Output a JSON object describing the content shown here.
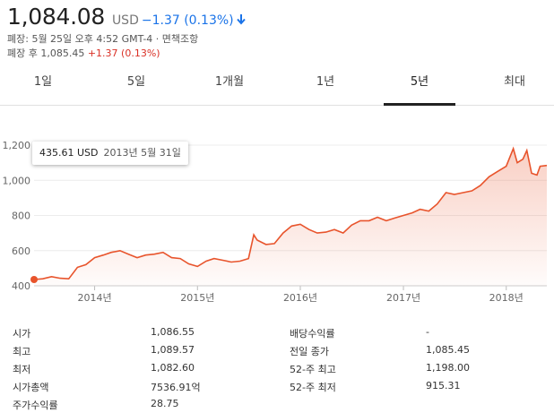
{
  "quote": {
    "price": "1,084.08",
    "currency": "USD",
    "change": "−1.37 (0.13%)",
    "close_time": "폐장: 5월 25일 오후 4:52 GMT-4 · ",
    "disclaimer": "면책조항",
    "after_hours_label": "폐장 후 1,085.45 ",
    "after_hours_change": "+1.37 (0.13%)",
    "colors": {
      "down": "#1a73e8",
      "up": "#d93025",
      "line": "#e8542c"
    }
  },
  "tabs": [
    {
      "label": "1일"
    },
    {
      "label": "5일"
    },
    {
      "label": "1개월"
    },
    {
      "label": "1년"
    },
    {
      "label": "5년",
      "active": true
    },
    {
      "label": "최대"
    }
  ],
  "tooltip": {
    "value": "435.61 USD",
    "date": "2013년 5월 31일"
  },
  "chart_data": {
    "type": "area",
    "title": "",
    "xlabel": "",
    "ylabel": "",
    "x_ticks": [
      "2014년",
      "2015년",
      "2016년",
      "2017년",
      "2018년"
    ],
    "y_ticks": [
      "400",
      "600",
      "800",
      "1,000",
      "1,200"
    ],
    "ylim": [
      400,
      1200
    ],
    "xlim": [
      "2013-05-31",
      "2018-05-25"
    ],
    "grid": true,
    "x": [
      "2013-05-31",
      "2013-07-01",
      "2013-08-01",
      "2013-09-01",
      "2013-10-01",
      "2013-11-01",
      "2013-12-01",
      "2014-01-01",
      "2014-02-01",
      "2014-03-01",
      "2014-04-01",
      "2014-05-01",
      "2014-06-01",
      "2014-07-01",
      "2014-08-01",
      "2014-09-01",
      "2014-10-01",
      "2014-11-01",
      "2014-12-01",
      "2015-01-01",
      "2015-02-01",
      "2015-03-01",
      "2015-04-01",
      "2015-05-01",
      "2015-06-01",
      "2015-07-01",
      "2015-07-20",
      "2015-08-01",
      "2015-09-01",
      "2015-10-01",
      "2015-11-01",
      "2015-12-01",
      "2016-01-01",
      "2016-02-01",
      "2016-03-01",
      "2016-04-01",
      "2016-05-01",
      "2016-06-01",
      "2016-07-01",
      "2016-08-01",
      "2016-09-01",
      "2016-10-01",
      "2016-11-01",
      "2016-12-01",
      "2017-01-01",
      "2017-02-01",
      "2017-03-01",
      "2017-04-01",
      "2017-05-01",
      "2017-06-01",
      "2017-07-01",
      "2017-08-01",
      "2017-09-01",
      "2017-10-01",
      "2017-11-01",
      "2017-12-01",
      "2018-01-01",
      "2018-01-26",
      "2018-02-09",
      "2018-03-01",
      "2018-03-15",
      "2018-04-01",
      "2018-04-20",
      "2018-05-01",
      "2018-05-25"
    ],
    "series": [
      {
        "values": [
          435.61,
          440,
          452,
          443,
          440,
          505,
          520,
          560,
          575,
          590,
          600,
          580,
          560,
          575,
          580,
          590,
          560,
          555,
          525,
          510,
          540,
          555,
          545,
          535,
          540,
          555,
          690,
          660,
          635,
          640,
          700,
          740,
          750,
          720,
          700,
          705,
          720,
          700,
          745,
          770,
          770,
          790,
          770,
          785,
          800,
          815,
          835,
          825,
          865,
          930,
          920,
          930,
          940,
          970,
          1020,
          1050,
          1080,
          1180,
          1100,
          1120,
          1170,
          1040,
          1030,
          1080,
          1084.08
        ]
      }
    ]
  },
  "stats": {
    "left": [
      {
        "label": "시가",
        "value": "1,086.55"
      },
      {
        "label": "최고",
        "value": "1,089.57"
      },
      {
        "label": "최저",
        "value": "1,082.60"
      },
      {
        "label": "시가총액",
        "value": "7536.91억"
      },
      {
        "label": "주가수익률",
        "value": "28.75"
      }
    ],
    "right": [
      {
        "label": "배당수익률",
        "value": "-"
      },
      {
        "label": "전일 종가",
        "value": "1,085.45"
      },
      {
        "label": "52-주 최고",
        "value": "1,198.00"
      },
      {
        "label": "52-주 최저",
        "value": "915.31"
      }
    ]
  }
}
